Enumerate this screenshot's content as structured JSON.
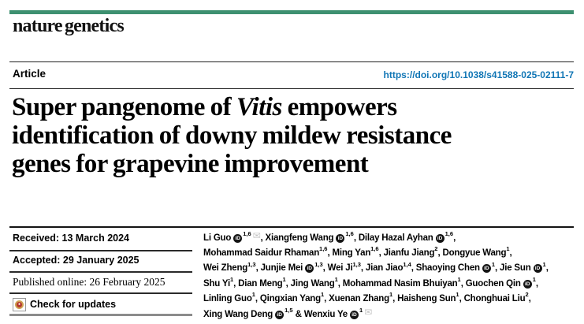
{
  "brand": {
    "name": "nature genetics",
    "bar_color": "#3d9070"
  },
  "article": {
    "label": "Article",
    "doi": "https://doi.org/10.1038/s41588-025-02111-7",
    "doi_color": "#1176b5"
  },
  "title": {
    "line1_pre": "Super pangenome of ",
    "line1_italic": "Vitis",
    "line1_post": " empowers",
    "line2": "identification of downy mildew resistance",
    "line3": "genes for grapevine improvement"
  },
  "meta": {
    "received": "Received: 13 March 2024",
    "accepted": "Accepted: 29 January 2025",
    "published": "Published online: 26 February 2025",
    "check_updates_label": "Check for updates"
  },
  "icons": {
    "orcid_glyph": "iD",
    "envelope_glyph": "✉",
    "check_updates_icon": "crossmark-badge"
  },
  "authors": {
    "lines": [
      [
        {
          "name": "Li Guo",
          "orcid": true,
          "sup": "1,6",
          "env": true,
          "sep": ", "
        },
        {
          "name": "Xiangfeng Wang",
          "orcid": true,
          "sup": "1,6",
          "sep": ", "
        },
        {
          "name": "Dilay Hazal Ayhan",
          "orcid": true,
          "sup": "1,6",
          "sep": ","
        }
      ],
      [
        {
          "name": "Mohammad Saidur Rhaman",
          "sup": "1,6",
          "sep": ", "
        },
        {
          "name": "Ming Yan",
          "sup": "1,6",
          "sep": ", "
        },
        {
          "name": "Jianfu Jiang",
          "sup": "2",
          "sep": ", "
        },
        {
          "name": "Dongyue Wang",
          "sup": "1",
          "sep": ","
        }
      ],
      [
        {
          "name": "Wei Zheng",
          "sup": "1,3",
          "sep": ", "
        },
        {
          "name": "Junjie Mei",
          "orcid": true,
          "sup": "1,3",
          "sep": ", "
        },
        {
          "name": "Wei Ji",
          "sup": "1,3",
          "sep": ", "
        },
        {
          "name": "Jian Jiao",
          "sup": "1,4",
          "sep": ", "
        },
        {
          "name": "Shaoying Chen",
          "orcid": true,
          "sup": "1",
          "sep": ", "
        },
        {
          "name": "Jie Sun",
          "orcid": true,
          "sup": "1",
          "sep": ","
        }
      ],
      [
        {
          "name": "Shu Yi",
          "sup": "1",
          "sep": ", "
        },
        {
          "name": "Dian Meng",
          "sup": "1",
          "sep": ", "
        },
        {
          "name": "Jing Wang",
          "sup": "1",
          "sep": ", "
        },
        {
          "name": "Mohammad Nasim Bhuiyan",
          "sup": "1",
          "sep": ", "
        },
        {
          "name": "Guochen Qin",
          "orcid": true,
          "sup": "1",
          "sep": ","
        }
      ],
      [
        {
          "name": "Linling Guo",
          "sup": "1",
          "sep": ", "
        },
        {
          "name": "Qingxian Yang",
          "sup": "1",
          "sep": ", "
        },
        {
          "name": "Xuenan Zhang",
          "sup": "1",
          "sep": ", "
        },
        {
          "name": "Haisheng Sun",
          "sup": "1",
          "sep": ", "
        },
        {
          "name": "Chonghuai Liu",
          "sup": "2",
          "sep": ","
        }
      ],
      [
        {
          "name": "Xing Wang Deng",
          "orcid": true,
          "sup": "1,5",
          "sep": " "
        },
        {
          "pre": "& ",
          "name": "Wenxiu Ye",
          "orcid": true,
          "sup": "1",
          "env": true,
          "sep": ""
        }
      ]
    ]
  }
}
